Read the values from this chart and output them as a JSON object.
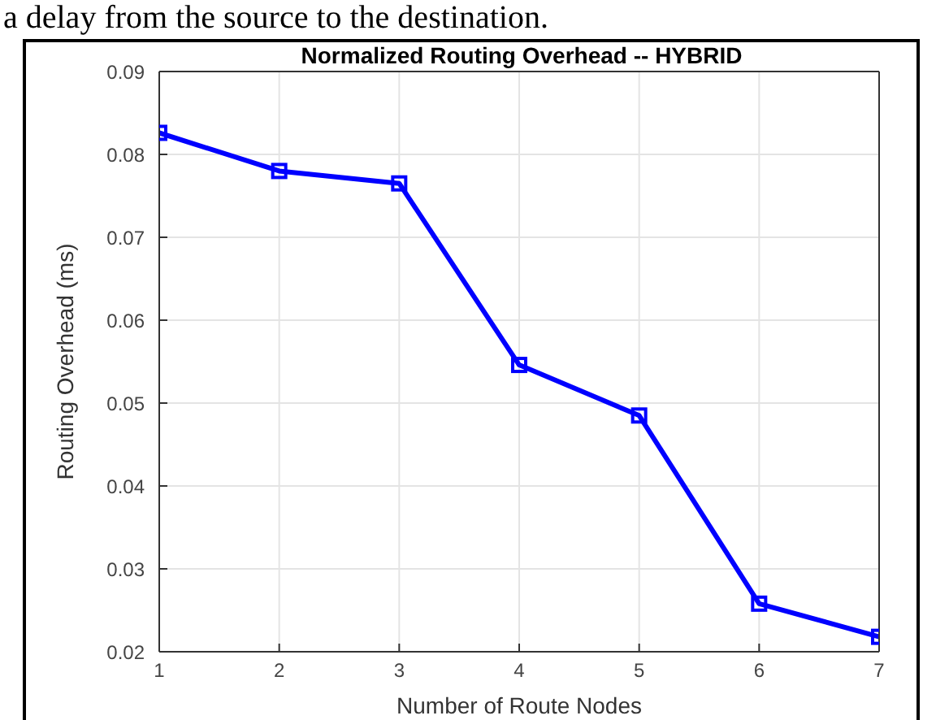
{
  "chart_data": {
    "type": "line",
    "title": "Normalized Routing Overhead -- HYBRID",
    "xlabel": "Number of Route Nodes",
    "ylabel": "Routing Overhead (ms)",
    "annotations": [
      "a delay from the source to the destination."
    ],
    "x": [
      1,
      2,
      3,
      4,
      5,
      6,
      7
    ],
    "series": [
      {
        "color": "#0000ff",
        "values": [
          0.0826,
          0.078,
          0.0765,
          0.0546,
          0.0485,
          0.0258,
          0.0218
        ]
      }
    ],
    "xlim": [
      1,
      7
    ],
    "xticks": [
      1,
      2,
      3,
      4,
      5,
      6,
      7
    ],
    "ylim": [
      0.02,
      0.09
    ],
    "yticks": [
      0.02,
      0.03,
      0.04,
      0.05,
      0.06,
      0.07,
      0.08,
      0.09
    ],
    "grid": true,
    "marker": "square",
    "line_style": "solid"
  }
}
